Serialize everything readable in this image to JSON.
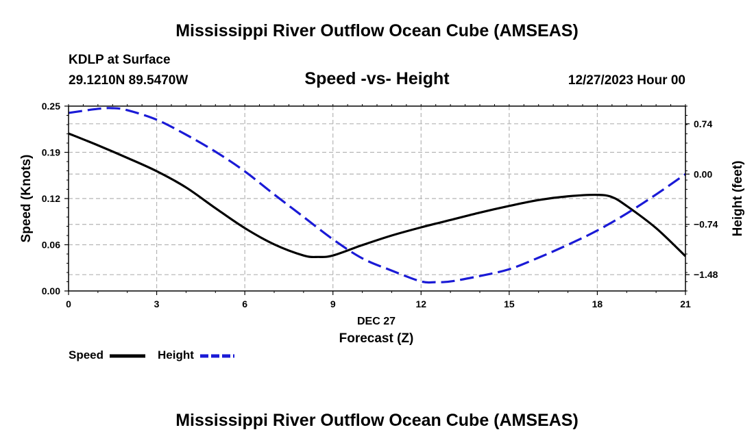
{
  "figure_title": "Mississippi River Outflow Ocean Cube (AMSEAS)",
  "footer_title": "Mississippi River Outflow Ocean Cube (AMSEAS)",
  "station": "KDLP at Surface",
  "coordinates": "29.1210N  89.5470W",
  "chart_subtitle": "Speed -vs- Height",
  "datetime": "12/27/2023 Hour 00",
  "legend": {
    "speed_label": "Speed",
    "height_label": "Height"
  },
  "colors": {
    "speed": "#000000",
    "height": "#1a1ad6",
    "grid": "#b4b4b4"
  },
  "chart_data": {
    "type": "line",
    "title": "Speed -vs- Height",
    "xlabel": "Forecast (Z)",
    "xsublabel": "DEC 27",
    "ylabel": "Speed (Knots)",
    "y2label": "Height (feet)",
    "xlim": [
      0,
      21
    ],
    "ylim": [
      0,
      0.25
    ],
    "y2lim": [
      -1.72,
      1.0
    ],
    "x_ticks": [
      0,
      3,
      6,
      9,
      12,
      15,
      18,
      21
    ],
    "x_tick_labels": [
      "0",
      "3",
      "6",
      "9",
      "12",
      "15",
      "18",
      "21"
    ],
    "y_ticks": [
      0,
      0.0625,
      0.125,
      0.1875,
      0.25
    ],
    "y_tick_labels": [
      "0.00",
      "0.06",
      "0.12",
      "0.19",
      "0.25"
    ],
    "y2_ticks": [
      -1.48,
      -0.74,
      0,
      0.74
    ],
    "y2_tick_labels": [
      "-1.48",
      "-0.74",
      "0.00",
      "0.74"
    ],
    "grid": true,
    "legend_position": "bottom-left",
    "series": [
      {
        "name": "Speed",
        "axis": "left",
        "style": "solid",
        "x": [
          0,
          1,
          2,
          3,
          4,
          5,
          6,
          7,
          8,
          8.5,
          9,
          10,
          11,
          12,
          13,
          14,
          15,
          16,
          17,
          18,
          18.5,
          19,
          20,
          21
        ],
        "values": [
          0.213,
          0.197,
          0.18,
          0.162,
          0.14,
          0.112,
          0.085,
          0.063,
          0.048,
          0.046,
          0.048,
          0.062,
          0.075,
          0.086,
          0.096,
          0.106,
          0.115,
          0.123,
          0.128,
          0.13,
          0.127,
          0.115,
          0.085,
          0.047
        ]
      },
      {
        "name": "Height",
        "axis": "right",
        "style": "dashed",
        "x": [
          0,
          1,
          1.5,
          2,
          3,
          4,
          5,
          6,
          7,
          8,
          9,
          10,
          11,
          12,
          12.5,
          13,
          14,
          15,
          16,
          17,
          18,
          19,
          20,
          21
        ],
        "values": [
          0.9,
          0.96,
          0.97,
          0.94,
          0.8,
          0.58,
          0.33,
          0.04,
          -0.3,
          -0.63,
          -0.96,
          -1.24,
          -1.42,
          -1.58,
          -1.59,
          -1.58,
          -1.5,
          -1.4,
          -1.23,
          -1.04,
          -0.83,
          -0.58,
          -0.3,
          0.0
        ]
      }
    ]
  }
}
